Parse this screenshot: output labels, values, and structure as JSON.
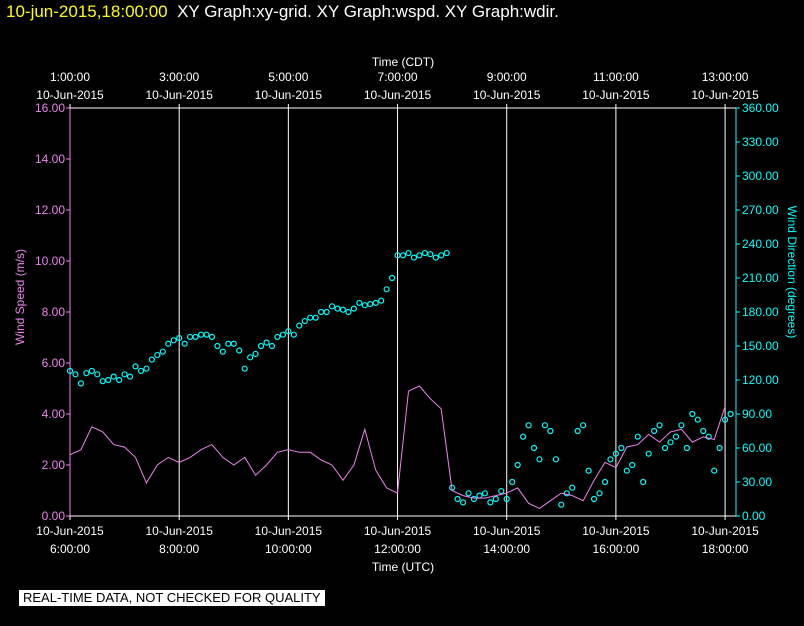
{
  "header": {
    "datetime": "10-jun-2015,18:00:00",
    "graphs": "XY Graph:xy-grid.  XY Graph:wspd.  XY Graph:wdir."
  },
  "footer": {
    "note": "REAL-TIME DATA, NOT CHECKED FOR QUALITY"
  },
  "colors": {
    "wspd": "#ee82ee",
    "wdir": "#00ffff",
    "grid": "#ffffff",
    "background": "#000000"
  },
  "chart_data": {
    "type": "line",
    "top_axis_title": "Time (CDT)",
    "bottom_axis_title": "Time (UTC)",
    "ylabel_left": "Wind Speed (m/s)",
    "ylabel_right": "Wind Direction (degrees)",
    "xlim_utc_hours": [
      6.0,
      18.2
    ],
    "ylim_left": [
      0,
      16
    ],
    "ylim_right": [
      0,
      360
    ],
    "grid": true,
    "bottom_ticks": [
      {
        "hour": 6,
        "date": "10-Jun-2015",
        "time": "6:00:00"
      },
      {
        "hour": 8,
        "date": "10-Jun-2015",
        "time": "8:00:00"
      },
      {
        "hour": 10,
        "date": "10-Jun-2015",
        "time": "10:00:00"
      },
      {
        "hour": 12,
        "date": "10-Jun-2015",
        "time": "12:00:00"
      },
      {
        "hour": 14,
        "date": "10-Jun-2015",
        "time": "14:00:00"
      },
      {
        "hour": 16,
        "date": "10-Jun-2015",
        "time": "16:00:00"
      },
      {
        "hour": 18,
        "date": "10-Jun-2015",
        "time": "18:00:00"
      }
    ],
    "top_ticks": [
      {
        "hour": 6,
        "time": "1:00:00",
        "date": "10-Jun-2015"
      },
      {
        "hour": 8,
        "time": "3:00:00",
        "date": "10-Jun-2015"
      },
      {
        "hour": 10,
        "time": "5:00:00",
        "date": "10-Jun-2015"
      },
      {
        "hour": 12,
        "time": "7:00:00",
        "date": "10-Jun-2015"
      },
      {
        "hour": 14,
        "time": "9:00:00",
        "date": "10-Jun-2015"
      },
      {
        "hour": 16,
        "time": "11:00:00",
        "date": "10-Jun-2015"
      },
      {
        "hour": 18,
        "time": "13:00:00",
        "date": "10-Jun-2015"
      }
    ],
    "left_ticks": [
      "0.00",
      "2.00",
      "4.00",
      "6.00",
      "8.00",
      "10.00",
      "12.00",
      "14.00",
      "16.00"
    ],
    "left_tick_values": [
      0,
      2,
      4,
      6,
      8,
      10,
      12,
      14,
      16
    ],
    "right_ticks": [
      "0.00",
      "30.00",
      "60.00",
      "90.00",
      "120.00",
      "150.00",
      "180.00",
      "210.00",
      "240.00",
      "270.00",
      "300.00",
      "330.00",
      "360.00"
    ],
    "right_tick_values": [
      0,
      30,
      60,
      90,
      120,
      150,
      180,
      210,
      240,
      270,
      300,
      330,
      360
    ],
    "series": [
      {
        "name": "wspd",
        "axis": "left",
        "style": "line",
        "x": [
          6.0,
          6.2,
          6.4,
          6.6,
          6.8,
          7.0,
          7.2,
          7.4,
          7.6,
          7.8,
          8.0,
          8.2,
          8.4,
          8.6,
          8.8,
          9.0,
          9.2,
          9.4,
          9.6,
          9.8,
          10.0,
          10.2,
          10.4,
          10.6,
          10.8,
          11.0,
          11.2,
          11.4,
          11.6,
          11.8,
          12.0,
          12.2,
          12.4,
          12.6,
          12.8,
          13.0,
          13.2,
          13.4,
          13.6,
          13.8,
          14.0,
          14.2,
          14.4,
          14.6,
          14.8,
          15.0,
          15.2,
          15.4,
          15.6,
          15.8,
          16.0,
          16.2,
          16.4,
          16.6,
          16.8,
          17.0,
          17.2,
          17.4,
          17.6,
          17.8,
          18.0
        ],
        "y": [
          2.4,
          2.6,
          3.5,
          3.3,
          2.8,
          2.7,
          2.3,
          1.3,
          2.0,
          2.3,
          2.1,
          2.3,
          2.6,
          2.8,
          2.3,
          2.0,
          2.3,
          1.6,
          2.0,
          2.5,
          2.6,
          2.5,
          2.5,
          2.2,
          2.0,
          1.4,
          2.0,
          3.4,
          1.8,
          1.1,
          0.9,
          4.9,
          5.1,
          4.6,
          4.2,
          1.0,
          0.8,
          0.7,
          0.7,
          0.8,
          0.9,
          1.1,
          0.5,
          0.3,
          0.6,
          0.9,
          0.8,
          0.6,
          1.4,
          2.1,
          1.9,
          2.7,
          2.8,
          3.2,
          2.9,
          3.3,
          3.4,
          2.9,
          3.1,
          3.0,
          4.3
        ]
      },
      {
        "name": "wdir",
        "axis": "right",
        "style": "markers",
        "x": [
          6.0,
          6.1,
          6.2,
          6.3,
          6.4,
          6.5,
          6.6,
          6.7,
          6.8,
          6.9,
          7.0,
          7.1,
          7.2,
          7.3,
          7.4,
          7.5,
          7.6,
          7.7,
          7.8,
          7.9,
          8.0,
          8.1,
          8.2,
          8.3,
          8.4,
          8.5,
          8.6,
          8.7,
          8.8,
          8.9,
          9.0,
          9.1,
          9.2,
          9.3,
          9.4,
          9.5,
          9.6,
          9.7,
          9.8,
          9.9,
          10.0,
          10.1,
          10.2,
          10.3,
          10.4,
          10.5,
          10.6,
          10.7,
          10.8,
          10.9,
          11.0,
          11.1,
          11.2,
          11.3,
          11.4,
          11.5,
          11.6,
          11.7,
          11.8,
          11.9,
          12.0,
          12.1,
          12.2,
          12.3,
          12.4,
          12.5,
          12.6,
          12.7,
          12.8,
          12.9,
          13.0,
          13.1,
          13.2,
          13.3,
          13.4,
          13.5,
          13.6,
          13.7,
          13.8,
          13.9,
          14.0,
          14.1,
          14.2,
          14.3,
          14.4,
          14.5,
          14.6,
          14.7,
          14.8,
          14.9,
          15.0,
          15.1,
          15.2,
          15.3,
          15.4,
          15.5,
          15.6,
          15.7,
          15.8,
          15.9,
          16.0,
          16.1,
          16.2,
          16.3,
          16.4,
          16.5,
          16.6,
          16.7,
          16.8,
          16.9,
          17.0,
          17.1,
          17.2,
          17.3,
          17.4,
          17.5,
          17.6,
          17.7,
          17.8,
          17.9,
          18.0,
          18.1
        ],
        "y": [
          128,
          125,
          117,
          126,
          128,
          125,
          119,
          120,
          123,
          120,
          125,
          123,
          132,
          128,
          130,
          138,
          142,
          145,
          152,
          155,
          157,
          152,
          158,
          158,
          160,
          160,
          158,
          150,
          145,
          152,
          152,
          146,
          130,
          140,
          143,
          150,
          153,
          150,
          158,
          160,
          163,
          160,
          168,
          172,
          175,
          175,
          180,
          180,
          185,
          183,
          182,
          180,
          183,
          188,
          186,
          187,
          188,
          190,
          200,
          210,
          230,
          230,
          232,
          228,
          230,
          232,
          231,
          228,
          230,
          232,
          25,
          15,
          12,
          20,
          15,
          18,
          20,
          12,
          15,
          22,
          15,
          30,
          45,
          70,
          80,
          60,
          50,
          80,
          75,
          50,
          10,
          20,
          25,
          75,
          80,
          40,
          15,
          20,
          30,
          50,
          55,
          60,
          40,
          45,
          70,
          30,
          55,
          75,
          80,
          60,
          65,
          70,
          80,
          60,
          90,
          85,
          75,
          70,
          40,
          60,
          85,
          90
        ]
      }
    ]
  }
}
